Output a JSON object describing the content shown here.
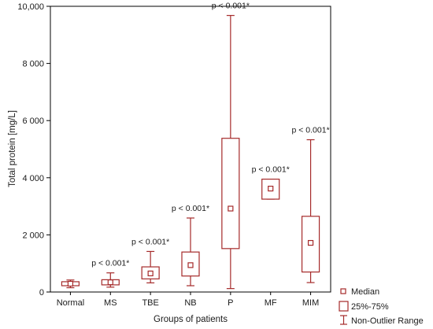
{
  "chart_data": {
    "type": "boxplot",
    "xlabel": "Groups of patients",
    "ylabel": "Total protein [mg/L]",
    "ylim": [
      0,
      10000
    ],
    "yticks": [
      0,
      2000,
      4000,
      6000,
      8000,
      10000
    ],
    "ytick_labels": [
      "0",
      "2 000",
      "4 000",
      "6 000",
      "8 000",
      "10,000"
    ],
    "grid": false,
    "box_color": "#a52a2a",
    "categories": [
      "Normal",
      "MS",
      "TBE",
      "NB",
      "P",
      "MF",
      "MIM"
    ],
    "boxes": [
      {
        "category": "Normal",
        "min": 150,
        "q1": 220,
        "median": 290,
        "q3": 360,
        "max": 420,
        "annotation": ""
      },
      {
        "category": "MS",
        "min": 170,
        "q1": 250,
        "median": 340,
        "q3": 430,
        "max": 670,
        "annotation": "p < 0.001*"
      },
      {
        "category": "TBE",
        "min": 320,
        "q1": 460,
        "median": 650,
        "q3": 880,
        "max": 1420,
        "annotation": "p < 0.001*"
      },
      {
        "category": "NB",
        "min": 220,
        "q1": 560,
        "median": 940,
        "q3": 1400,
        "max": 2590,
        "annotation": "p < 0.001*"
      },
      {
        "category": "P",
        "min": 120,
        "q1": 1520,
        "median": 2920,
        "q3": 5380,
        "max": 9680,
        "annotation": "p < 0.001*"
      },
      {
        "category": "MF",
        "min": 3250,
        "q1": 3250,
        "median": 3620,
        "q3": 3950,
        "max": 3950,
        "annotation": "p < 0.001*"
      },
      {
        "category": "MIM",
        "min": 330,
        "q1": 700,
        "median": 1720,
        "q3": 2650,
        "max": 5330,
        "annotation": "p < 0.001*"
      }
    ],
    "legend": {
      "placement": "bottom-right",
      "entries": [
        "Median",
        "25%-75%",
        "Non-Outlier Range"
      ]
    }
  }
}
